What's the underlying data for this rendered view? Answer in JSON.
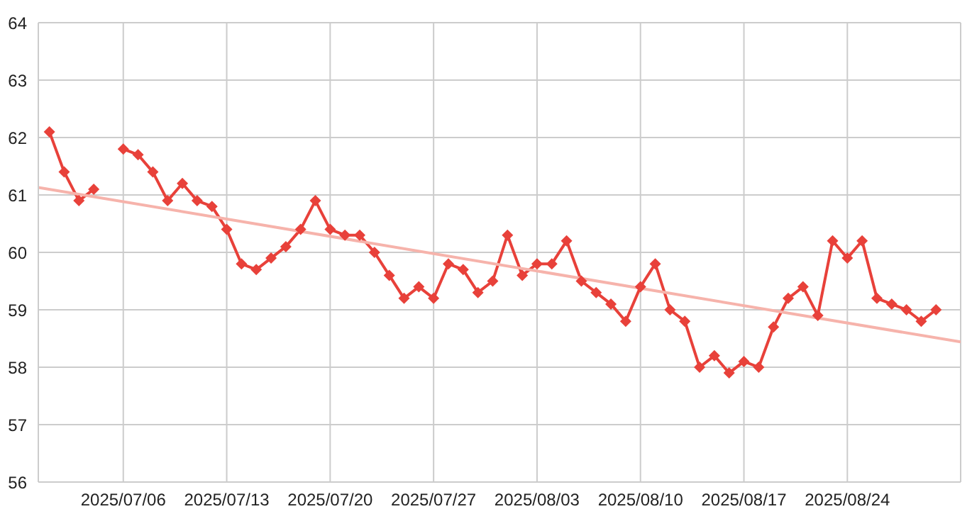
{
  "chart_data": {
    "type": "line",
    "x": [
      "2025-07-01",
      "2025-07-02",
      "2025-07-03",
      "2025-07-04",
      "2025-07-05",
      "2025-07-06",
      "2025-07-07",
      "2025-07-08",
      "2025-07-09",
      "2025-07-10",
      "2025-07-11",
      "2025-07-12",
      "2025-07-13",
      "2025-07-14",
      "2025-07-15",
      "2025-07-16",
      "2025-07-17",
      "2025-07-18",
      "2025-07-19",
      "2025-07-20",
      "2025-07-21",
      "2025-07-22",
      "2025-07-23",
      "2025-07-24",
      "2025-07-25",
      "2025-07-26",
      "2025-07-27",
      "2025-07-28",
      "2025-07-29",
      "2025-07-30",
      "2025-07-31",
      "2025-08-01",
      "2025-08-02",
      "2025-08-03",
      "2025-08-04",
      "2025-08-05",
      "2025-08-06",
      "2025-08-07",
      "2025-08-08",
      "2025-08-09",
      "2025-08-10",
      "2025-08-11",
      "2025-08-12",
      "2025-08-13",
      "2025-08-14",
      "2025-08-15",
      "2025-08-16",
      "2025-08-17",
      "2025-08-18",
      "2025-08-19",
      "2025-08-20",
      "2025-08-21",
      "2025-08-22",
      "2025-08-23",
      "2025-08-24",
      "2025-08-25",
      "2025-08-26",
      "2025-08-27",
      "2025-08-28",
      "2025-08-29",
      "2025-08-30"
    ],
    "series": [
      {
        "color": "#e8413a",
        "marker": "diamond",
        "values": [
          62.1,
          61.4,
          60.9,
          61.1,
          null,
          61.8,
          61.7,
          61.4,
          60.9,
          61.2,
          60.9,
          60.8,
          60.4,
          59.8,
          59.7,
          59.9,
          60.1,
          60.4,
          60.9,
          60.4,
          60.3,
          60.3,
          60.0,
          59.6,
          59.2,
          59.4,
          59.2,
          59.8,
          59.7,
          59.3,
          59.5,
          60.3,
          59.6,
          59.8,
          59.8,
          60.2,
          59.5,
          59.3,
          59.1,
          58.8,
          59.4,
          59.8,
          59.0,
          58.8,
          58.0,
          58.2,
          57.9,
          58.1,
          58.0,
          58.7,
          59.2,
          59.4,
          58.9,
          60.2,
          59.9,
          60.2,
          59.2,
          59.1,
          59.0,
          58.8,
          59.0
        ]
      },
      {
        "type": "line",
        "color": "#f6b3ab",
        "marker": "none",
        "x": [
          "2025-06-30T06:00",
          "2025-08-31T16:00"
        ],
        "values": [
          61.13,
          58.44
        ]
      }
    ],
    "xlim": [
      "2025-06-30T06:00",
      "2025-08-31T16:00"
    ],
    "xticks": [
      {
        "value": "2025-07-06",
        "label": "2025/07/06"
      },
      {
        "value": "2025-07-13",
        "label": "2025/07/13"
      },
      {
        "value": "2025-07-20",
        "label": "2025/07/20"
      },
      {
        "value": "2025-07-27",
        "label": "2025/07/27"
      },
      {
        "value": "2025-08-03",
        "label": "2025/08/03"
      },
      {
        "value": "2025-08-10",
        "label": "2025/08/10"
      },
      {
        "value": "2025-08-17",
        "label": "2025/08/17"
      },
      {
        "value": "2025-08-24",
        "label": "2025/08/24"
      }
    ],
    "ylim": [
      56,
      64
    ],
    "yticks": [
      56,
      57,
      58,
      59,
      60,
      61,
      62,
      63,
      64
    ],
    "grid": true
  }
}
